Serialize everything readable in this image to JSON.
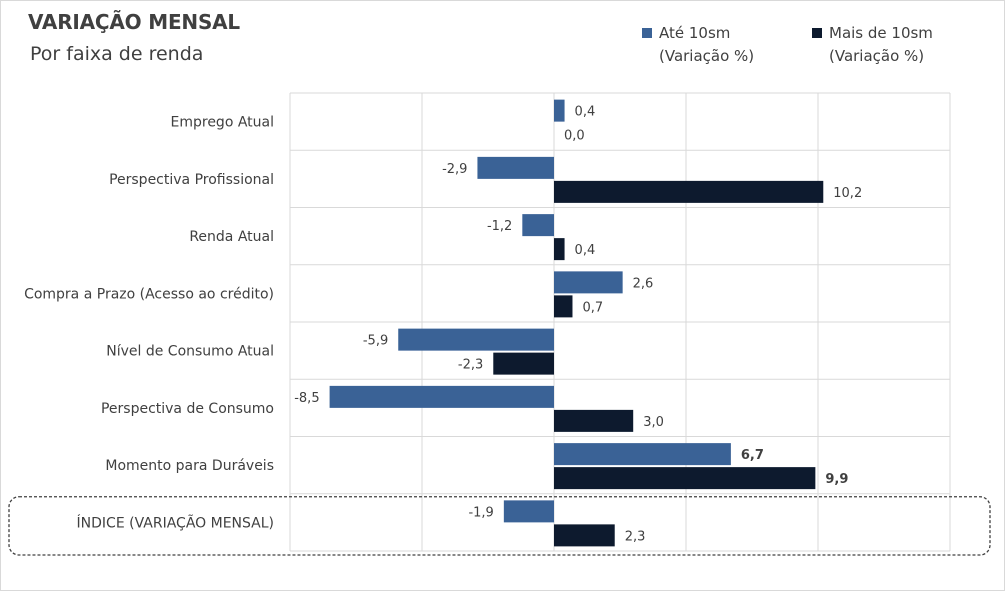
{
  "header": {
    "title": "VARIAÇÃO MENSAL",
    "subtitle": "Por faixa de renda"
  },
  "legend": [
    {
      "line1": "Até 10sm",
      "line2": "(Variação %)",
      "color": "#3a6296"
    },
    {
      "line1": "Mais de 10sm",
      "line2": "(Variação %)",
      "color": "#0d1a2e"
    }
  ],
  "chart_data": {
    "type": "bar",
    "orientation": "horizontal",
    "categories": [
      "Emprego Atual",
      "Perspectiva Profissional",
      "Renda Atual",
      "Compra a Prazo (Acesso ao crédito)",
      "Nível de Consumo Atual",
      "Perspectiva de Consumo",
      "Momento para Duráveis",
      "ÍNDICE (VARIAÇÃO MENSAL)"
    ],
    "series": [
      {
        "name": "Até 10sm (Variação %)",
        "color": "#3a6296",
        "values": [
          0.4,
          -2.9,
          -1.2,
          2.6,
          -5.9,
          -8.5,
          6.7,
          -1.9
        ],
        "labels": [
          "0,4",
          "-2,9",
          "-1,2",
          "2,6",
          "-5,9",
          "-8,5",
          "6,7",
          "-1,9"
        ]
      },
      {
        "name": "Mais de 10sm (Variação %)",
        "color": "#0d1a2e",
        "values": [
          0.0,
          10.2,
          0.4,
          0.7,
          -2.3,
          3.0,
          9.9,
          2.3
        ],
        "labels": [
          "0,0",
          "10,2",
          "0,4",
          "0,7",
          "-2,3",
          "3,0",
          "9,9",
          "2,3"
        ]
      }
    ],
    "bold_categories": [
      "Momento para Duráveis"
    ],
    "highlighted_category": "ÍNDICE (VARIAÇÃO MENSAL)",
    "xlim": [
      -10,
      15
    ],
    "grid": true,
    "legend_position": "top-right"
  }
}
